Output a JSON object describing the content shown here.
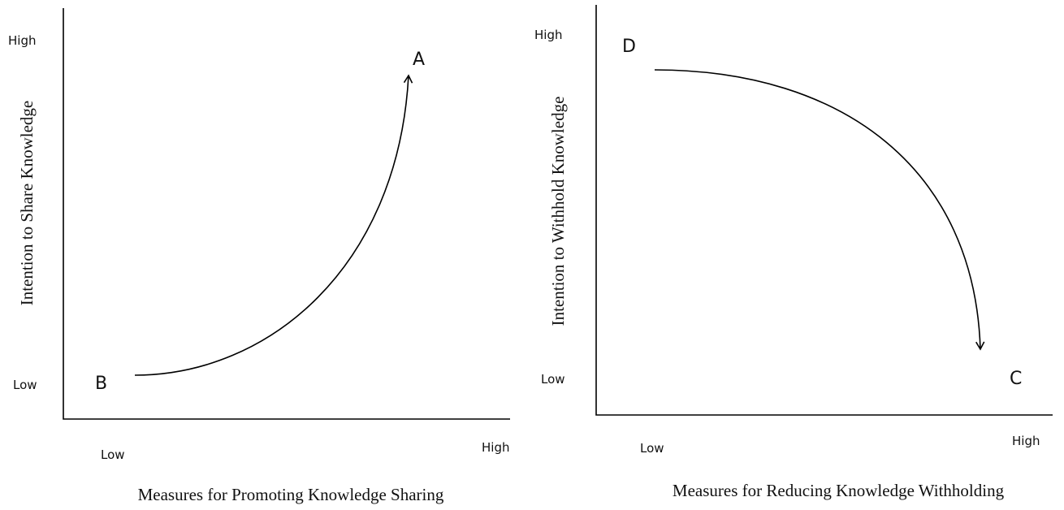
{
  "panels": [
    {
      "y_axis_title": "Intention to Share Knowledge",
      "x_axis_title": "Measures for Promoting Knowledge Sharing",
      "y_high": "High",
      "y_low": "Low",
      "x_low": "Low",
      "x_high": "High",
      "start_point": "B",
      "end_point": "A"
    },
    {
      "y_axis_title": "Intention to Withhold Knowledge",
      "x_axis_title": "Measures for Reducing Knowledge Withholding",
      "y_high": "High",
      "y_low": "Low",
      "x_low": "Low",
      "x_high": "High",
      "start_point": "D",
      "end_point": "C"
    }
  ]
}
